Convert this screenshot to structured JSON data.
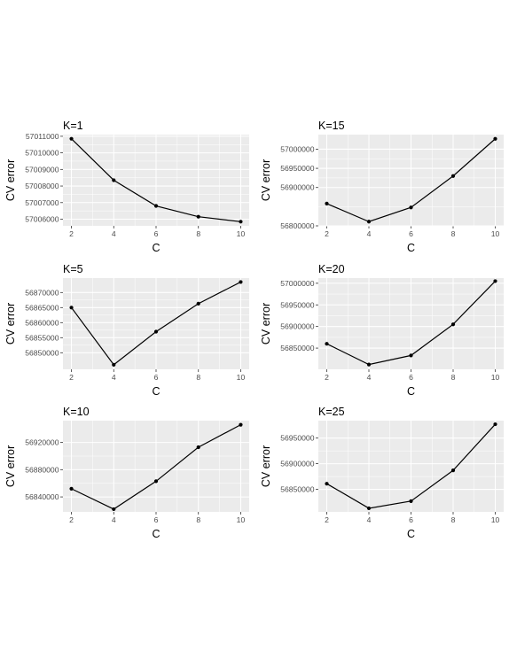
{
  "chart_data": [
    {
      "type": "line",
      "title": "K=1",
      "xlabel": "C",
      "ylabel": "CV error",
      "x": [
        2,
        4,
        6,
        8,
        10
      ],
      "series": [
        {
          "values": [
            57010850,
            57008350,
            57006800,
            57006150,
            57005850
          ]
        }
      ],
      "xticks": [
        2,
        4,
        6,
        8,
        10
      ],
      "xtick_labels": [
        "2",
        "4",
        "6",
        "8",
        "10"
      ],
      "yticks": [
        57006000,
        57007000,
        57008000,
        57009000,
        57010000,
        57011000
      ],
      "ytick_labels": [
        "57006000",
        "57007000",
        "57008000",
        "57009000",
        "57010000",
        "57011000"
      ],
      "xlim": [
        1.6,
        10.4
      ],
      "ylim": [
        57005600,
        57011100
      ],
      "grid": true,
      "legend": "none"
    },
    {
      "type": "line",
      "title": "K=15",
      "xlabel": "C",
      "ylabel": "CV error",
      "x": [
        2,
        4,
        6,
        8,
        10
      ],
      "series": [
        {
          "values": [
            56858000,
            56811000,
            56848000,
            56930000,
            57027000
          ]
        }
      ],
      "xticks": [
        2,
        4,
        6,
        8,
        10
      ],
      "xtick_labels": [
        "2",
        "4",
        "6",
        "8",
        "10"
      ],
      "yticks": [
        56800000,
        56900000,
        56950000,
        57000000
      ],
      "ytick_labels": [
        "56800000",
        "56900000",
        "56950000",
        "57000000"
      ],
      "xlim": [
        1.6,
        10.4
      ],
      "ylim": [
        56800000,
        57038000
      ],
      "grid": true,
      "legend": "none"
    },
    {
      "type": "line",
      "title": "K=5",
      "xlabel": "C",
      "ylabel": "CV error",
      "x": [
        2,
        4,
        6,
        8,
        10
      ],
      "series": [
        {
          "values": [
            56865000,
            56846000,
            56857000,
            56866300,
            56873500
          ]
        }
      ],
      "xticks": [
        2,
        4,
        6,
        8,
        10
      ],
      "xtick_labels": [
        "2",
        "4",
        "6",
        "8",
        "10"
      ],
      "yticks": [
        56850000,
        56855000,
        56860000,
        56865000,
        56870000
      ],
      "ytick_labels": [
        "56850000",
        "56855000",
        "56860000",
        "56865000",
        "56870000"
      ],
      "xlim": [
        1.6,
        10.4
      ],
      "ylim": [
        56844500,
        56874800
      ],
      "grid": true,
      "legend": "none"
    },
    {
      "type": "line",
      "title": "K=20",
      "xlabel": "C",
      "ylabel": "CV error",
      "x": [
        2,
        4,
        6,
        8,
        10
      ],
      "series": [
        {
          "values": [
            56860000,
            56812000,
            56833000,
            56905000,
            57005000
          ]
        }
      ],
      "xticks": [
        2,
        4,
        6,
        8,
        10
      ],
      "xtick_labels": [
        "2",
        "4",
        "6",
        "8",
        "10"
      ],
      "yticks": [
        56850000,
        56900000,
        56950000,
        57000000
      ],
      "ytick_labels": [
        "56850000",
        "56900000",
        "56950000",
        "57000000"
      ],
      "xlim": [
        1.6,
        10.4
      ],
      "ylim": [
        56801000,
        57012000
      ],
      "grid": true,
      "legend": "none"
    },
    {
      "type": "line",
      "title": "K=10",
      "xlabel": "C",
      "ylabel": "CV error",
      "x": [
        2,
        4,
        6,
        8,
        10
      ],
      "series": [
        {
          "values": [
            56852000,
            56822000,
            56863000,
            56913000,
            56946000
          ]
        }
      ],
      "xticks": [
        2,
        4,
        6,
        8,
        10
      ],
      "xtick_labels": [
        "2",
        "4",
        "6",
        "8",
        "10"
      ],
      "yticks": [
        56840000,
        56880000,
        56920000
      ],
      "ytick_labels": [
        "56840000",
        "56880000",
        "56920000"
      ],
      "xlim": [
        1.6,
        10.4
      ],
      "ylim": [
        56818000,
        56952000
      ],
      "grid": true,
      "legend": "none"
    },
    {
      "type": "line",
      "title": "K=25",
      "xlabel": "C",
      "ylabel": "CV error",
      "x": [
        2,
        4,
        6,
        8,
        10
      ],
      "series": [
        {
          "values": [
            56861000,
            56813000,
            56827000,
            56887000,
            56977000
          ]
        }
      ],
      "xticks": [
        2,
        4,
        6,
        8,
        10
      ],
      "xtick_labels": [
        "2",
        "4",
        "6",
        "8",
        "10"
      ],
      "yticks": [
        56850000,
        56900000,
        56950000
      ],
      "ytick_labels": [
        "56850000",
        "56900000",
        "56950000"
      ],
      "xlim": [
        1.6,
        10.4
      ],
      "ylim": [
        56806000,
        56984000
      ],
      "grid": true,
      "legend": "none"
    }
  ]
}
